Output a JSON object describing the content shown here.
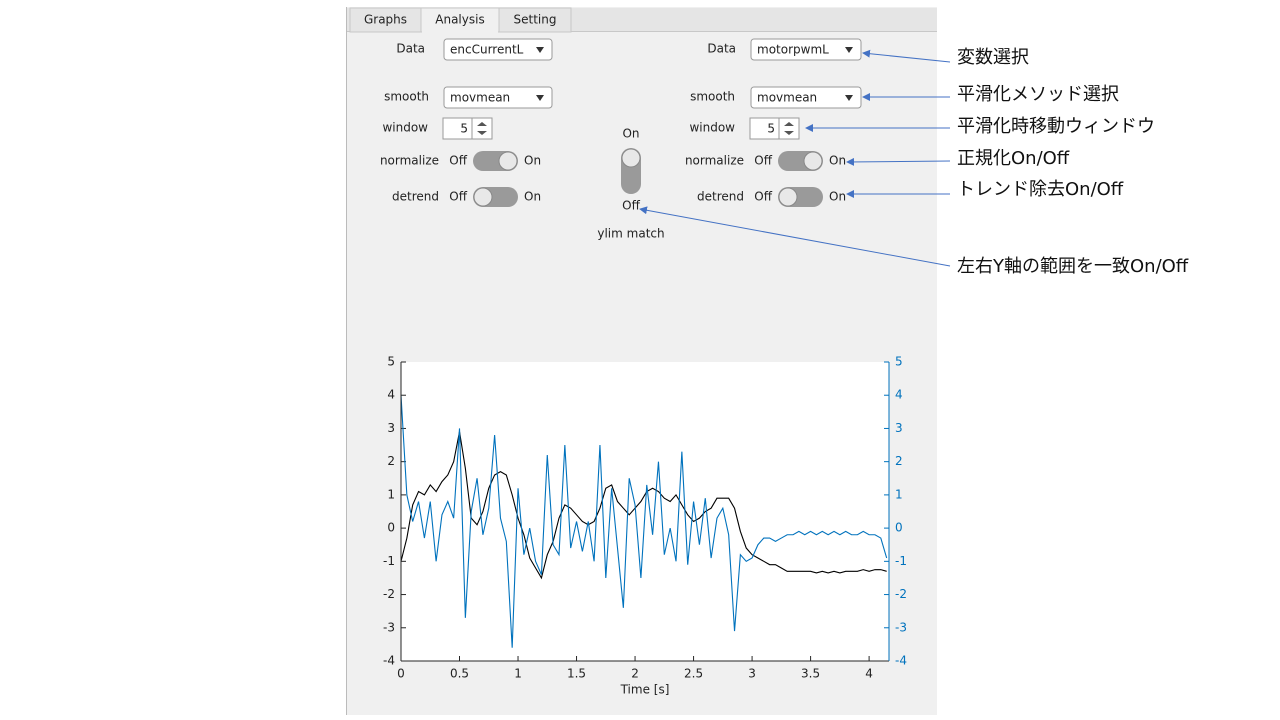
{
  "tabs": [
    "Graphs",
    "Analysis",
    "Setting"
  ],
  "left_panel": {
    "data": {
      "label": "Data",
      "value": "encCurrentL"
    },
    "smooth": {
      "label": "smooth",
      "value": "movmean"
    },
    "window": {
      "label": "window",
      "value": 5
    },
    "normalize": {
      "label": "normalize",
      "off": "Off",
      "on": "On"
    },
    "detrend": {
      "label": "detrend",
      "off": "Off",
      "on": "On"
    }
  },
  "right_panel": {
    "data": {
      "label": "Data",
      "value": "motorpwmL"
    },
    "smooth": {
      "label": "smooth",
      "value": "movmean"
    },
    "window": {
      "label": "window",
      "value": 5
    },
    "normalize": {
      "label": "normalize",
      "off": "Off",
      "on": "On"
    },
    "detrend": {
      "label": "detrend",
      "off": "Off",
      "on": "On"
    }
  },
  "ylim_match": {
    "on": "On",
    "off": "Off",
    "label": "ylim match"
  },
  "annotations": [
    "変数選択",
    "平滑化メソッド選択",
    "平滑化時移動ウィンドウ",
    "正規化On/Off",
    "トレンド除去On/Off",
    "左右Y軸の範囲を一致On/Off"
  ],
  "chart_data": {
    "type": "line",
    "xlabel": "Time [s]",
    "x": [
      0,
      0.05,
      0.1,
      0.15,
      0.2,
      0.25,
      0.3,
      0.35,
      0.4,
      0.45,
      0.5,
      0.55,
      0.6,
      0.65,
      0.7,
      0.75,
      0.8,
      0.85,
      0.9,
      0.95,
      1,
      1.05,
      1.1,
      1.15,
      1.2,
      1.25,
      1.3,
      1.35,
      1.4,
      1.45,
      1.5,
      1.55,
      1.6,
      1.65,
      1.7,
      1.75,
      1.8,
      1.85,
      1.9,
      1.95,
      2,
      2.05,
      2.1,
      2.15,
      2.2,
      2.25,
      2.3,
      2.35,
      2.4,
      2.45,
      2.5,
      2.55,
      2.6,
      2.65,
      2.7,
      2.75,
      2.8,
      2.85,
      2.9,
      2.95,
      3,
      3.05,
      3.1,
      3.15,
      3.2,
      3.25,
      3.3,
      3.35,
      3.4,
      3.45,
      3.5,
      3.55,
      3.6,
      3.65,
      3.7,
      3.75,
      3.8,
      3.85,
      3.9,
      3.95,
      4,
      4.05,
      4.1,
      4.15
    ],
    "xlim": [
      0,
      4.17
    ],
    "xticks": [
      0,
      0.5,
      1,
      1.5,
      2,
      2.5,
      3,
      3.5,
      4
    ],
    "ylim": [
      -4,
      5
    ],
    "yticks": [
      -4,
      -3,
      -2,
      -1,
      0,
      1,
      2,
      3,
      4,
      5
    ],
    "y2lim": [
      -4,
      5
    ],
    "y2ticks": [
      -4,
      -3,
      -2,
      -1,
      0,
      1,
      2,
      3,
      4,
      5
    ],
    "series": [
      {
        "color": "#000000",
        "values": [
          -1.0,
          -0.3,
          0.7,
          1.1,
          1.0,
          1.3,
          1.1,
          1.4,
          1.6,
          2.0,
          2.9,
          1.8,
          0.3,
          0.1,
          0.5,
          1.2,
          1.6,
          1.7,
          1.6,
          1.0,
          0.3,
          -0.2,
          -0.9,
          -1.2,
          -1.5,
          -0.8,
          -0.4,
          0.3,
          0.7,
          0.6,
          0.4,
          0.2,
          0.1,
          0.2,
          0.6,
          1.2,
          1.3,
          0.8,
          0.6,
          0.4,
          0.6,
          0.8,
          1.1,
          1.2,
          1.1,
          0.9,
          0.8,
          1.0,
          0.7,
          0.4,
          0.2,
          0.3,
          0.5,
          0.6,
          0.9,
          0.9,
          0.9,
          0.6,
          -0.1,
          -0.6,
          -0.8,
          -0.9,
          -1.0,
          -1.1,
          -1.1,
          -1.2,
          -1.3,
          -1.3,
          -1.3,
          -1.3,
          -1.3,
          -1.35,
          -1.3,
          -1.35,
          -1.3,
          -1.35,
          -1.3,
          -1.3,
          -1.3,
          -1.25,
          -1.3,
          -1.25,
          -1.25,
          -1.3
        ]
      },
      {
        "color": "#0072bd",
        "axis": "y2",
        "values": [
          4.0,
          1.0,
          0.2,
          0.8,
          -0.3,
          0.8,
          -1.0,
          0.4,
          0.8,
          0.3,
          3.0,
          -2.7,
          0.5,
          1.5,
          -0.2,
          0.6,
          2.8,
          0.3,
          -0.4,
          -3.6,
          1.2,
          -0.8,
          0.0,
          -1.0,
          -1.4,
          2.2,
          -0.5,
          -0.8,
          2.5,
          -0.6,
          0.2,
          -0.7,
          0.2,
          -1.0,
          2.5,
          -1.5,
          1.2,
          -0.6,
          -2.4,
          1.5,
          0.7,
          -1.5,
          1.3,
          -0.2,
          2.0,
          -0.8,
          0.0,
          -1.0,
          2.3,
          -1.1,
          0.8,
          -0.5,
          0.9,
          -0.9,
          0.3,
          0.6,
          -0.2,
          -3.1,
          -0.8,
          -1.0,
          -0.9,
          -0.5,
          -0.3,
          -0.3,
          -0.4,
          -0.3,
          -0.2,
          -0.2,
          -0.1,
          -0.2,
          -0.1,
          -0.2,
          -0.1,
          -0.2,
          -0.1,
          -0.2,
          -0.1,
          -0.2,
          -0.2,
          -0.1,
          -0.2,
          -0.2,
          -0.3,
          -0.9
        ]
      }
    ]
  }
}
